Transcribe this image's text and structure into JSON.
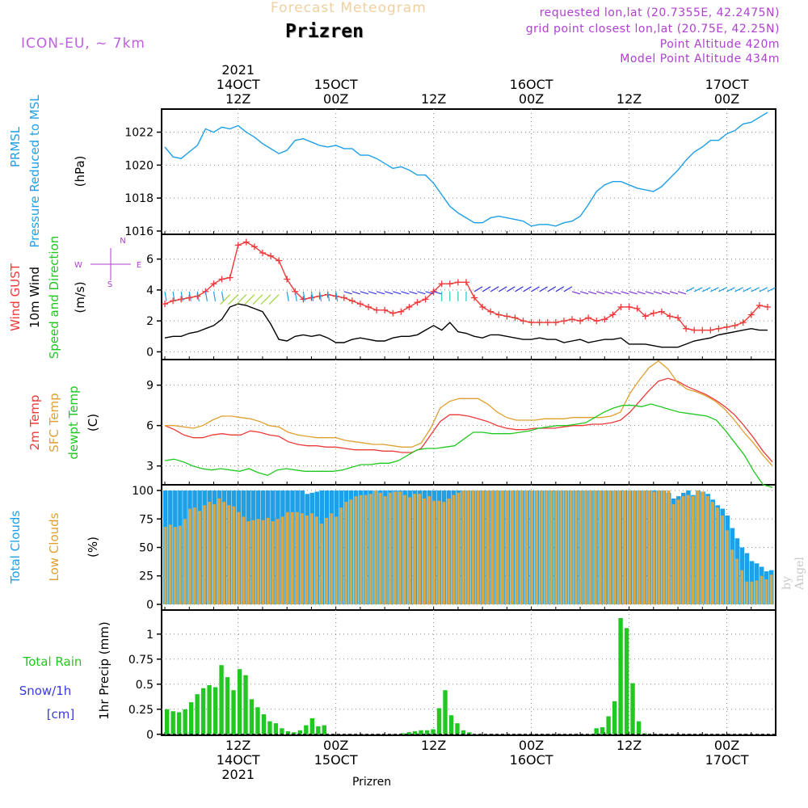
{
  "header": {
    "title": "Forecast Meteogram",
    "location": "Prizren",
    "model": "ICON-EU, ~ 7km",
    "requested": "requested lon,lat (20.7355E, 42.2475N)",
    "gridpoint": "grid point closest lon,lat (20.75E, 42.25N)",
    "point_alt": "Point Altitude 420m",
    "model_alt": "Model Point Altitude 434m",
    "footer_location": "Prizren",
    "watermark": "by Angel"
  },
  "top_axis": [
    {
      "lines": [
        "2021",
        "14OCT",
        "12Z"
      ]
    },
    {
      "lines": [
        "15OCT",
        "00Z"
      ]
    },
    {
      "lines": [
        "12Z"
      ]
    },
    {
      "lines": [
        "16OCT",
        "00Z"
      ]
    },
    {
      "lines": [
        "12Z"
      ]
    },
    {
      "lines": [
        "17OCT",
        "00Z"
      ]
    }
  ],
  "bottom_axis": [
    {
      "lines": [
        "12Z",
        "14OCT",
        "2021"
      ]
    },
    {
      "lines": [
        "00Z",
        "15OCT"
      ]
    },
    {
      "lines": [
        "12Z"
      ]
    },
    {
      "lines": [
        "00Z",
        "16OCT"
      ]
    },
    {
      "lines": [
        "12Z"
      ]
    },
    {
      "lines": [
        "00Z",
        "17OCT"
      ]
    }
  ],
  "colors": {
    "pressure": "#1ea0e6",
    "gust": "#ee3a3a",
    "wind": "#000000",
    "t2m": "#ee3a3a",
    "sfc": "#e0a030",
    "dewpt": "#22c822",
    "total_clouds": "#1ea0e6",
    "low_clouds": "#d8a848",
    "rain": "#22c822",
    "snow": "#3a3ae0"
  },
  "chart_data": [
    {
      "type": "line",
      "panel": "pressure",
      "ylabels": [
        "PRMSL",
        "Pressure Reduced to MSL",
        "(hPa)"
      ],
      "yticks": [
        1016,
        1018,
        1020,
        1022
      ],
      "ylim": [
        1015.8,
        1023.4
      ],
      "x_start_hours": 0,
      "x_step_hours": 1,
      "series": [
        {
          "values": [
            1021.1,
            1020.5,
            1020.4,
            1020.8,
            1021.2,
            1022.2,
            1022.0,
            1022.3,
            1022.2,
            1022.4,
            1022.0,
            1021.7,
            1021.3,
            1021.0,
            1020.7,
            1020.9,
            1021.5,
            1021.6,
            1021.4,
            1021.2,
            1021.1,
            1021.2,
            1021.0,
            1021.0,
            1020.6,
            1020.6,
            1020.4,
            1020.1,
            1019.8,
            1019.9,
            1019.7,
            1019.4,
            1019.4,
            1018.9,
            1018.2,
            1017.5,
            1017.1,
            1016.8,
            1016.5,
            1016.5,
            1016.8,
            1016.9,
            1016.8,
            1016.7,
            1016.6,
            1016.3,
            1016.4,
            1016.4,
            1016.3,
            1016.5,
            1016.6,
            1016.9,
            1017.6,
            1018.4,
            1018.8,
            1019.0,
            1019.0,
            1018.8,
            1018.6,
            1018.5,
            1018.4,
            1018.7,
            1019.2,
            1019.7,
            1020.3,
            1020.8,
            1021.1,
            1021.5,
            1021.5,
            1021.9,
            1022.1,
            1022.5,
            1022.6,
            1022.9,
            1023.2
          ]
        }
      ]
    },
    {
      "type": "line",
      "panel": "wind",
      "ylabels": [
        "Wind GUST",
        "10m Wind",
        "Speed and Direction",
        "(m/s)"
      ],
      "compass": [
        "N",
        "W",
        "E",
        "S"
      ],
      "yticks": [
        0,
        2,
        4,
        6
      ],
      "ylim": [
        -0.5,
        7.6
      ],
      "x_start_hours": 0,
      "x_step_hours": 1,
      "series": [
        {
          "name": "Wind GUST",
          "values": [
            3.1,
            3.3,
            3.4,
            3.5,
            3.6,
            3.9,
            4.4,
            4.7,
            4.8,
            6.9,
            7.1,
            6.8,
            6.4,
            6.2,
            5.9,
            4.7,
            3.9,
            3.4,
            3.5,
            3.6,
            3.7,
            3.6,
            3.5,
            3.3,
            3.1,
            2.9,
            2.7,
            2.7,
            2.5,
            2.6,
            2.9,
            3.2,
            3.4,
            3.9,
            4.4,
            4.4,
            4.5,
            4.5,
            3.5,
            2.9,
            2.6,
            2.4,
            2.3,
            2.2,
            2.0,
            1.9,
            1.9,
            1.9,
            1.9,
            2.0,
            2.1,
            2.0,
            2.2,
            2.0,
            2.1,
            2.4,
            2.9,
            2.9,
            2.8,
            2.3,
            2.5,
            2.6,
            2.3,
            2.2,
            1.5,
            1.4,
            1.4,
            1.4,
            1.5,
            1.6,
            1.7,
            1.9,
            2.4,
            3.0,
            2.9
          ]
        },
        {
          "name": "10m Wind",
          "values": [
            0.9,
            1.0,
            1.0,
            1.2,
            1.3,
            1.5,
            1.7,
            2.1,
            2.9,
            3.1,
            3.0,
            2.8,
            2.6,
            1.8,
            0.8,
            0.7,
            1.0,
            1.1,
            1.0,
            1.1,
            0.9,
            0.6,
            0.6,
            0.8,
            0.9,
            0.8,
            0.7,
            0.7,
            0.9,
            1.0,
            1.0,
            1.1,
            1.4,
            1.7,
            1.4,
            1.9,
            1.3,
            1.2,
            1.0,
            0.9,
            1.1,
            1.1,
            1.0,
            0.9,
            0.8,
            0.8,
            0.9,
            0.8,
            0.8,
            0.6,
            0.7,
            0.8,
            0.6,
            0.7,
            0.8,
            0.8,
            0.9,
            0.5,
            0.5,
            0.5,
            0.4,
            0.3,
            0.3,
            0.3,
            0.5,
            0.7,
            0.8,
            0.9,
            1.1,
            1.2,
            1.3,
            1.4,
            1.5,
            1.4,
            1.4
          ]
        }
      ]
    },
    {
      "type": "line",
      "panel": "temperature",
      "ylabels": [
        "2m Temp",
        "SFC Temp",
        "dewpt Temp",
        "(C)"
      ],
      "yticks": [
        3,
        6,
        9
      ],
      "ylim": [
        1.6,
        10.9
      ],
      "x_start_hours": 0,
      "x_step_hours": 1,
      "series": [
        {
          "name": "2m Temp",
          "values": [
            6.0,
            5.7,
            5.3,
            5.1,
            5.1,
            5.3,
            5.4,
            5.3,
            5.3,
            5.6,
            5.5,
            5.3,
            5.2,
            4.8,
            4.6,
            4.5,
            4.5,
            4.4,
            4.4,
            4.3,
            4.2,
            4.2,
            4.2,
            4.1,
            4.1,
            4.0,
            4.0,
            4.3,
            5.3,
            6.3,
            6.8,
            6.8,
            6.7,
            6.5,
            6.3,
            6.0,
            5.8,
            5.7,
            5.7,
            5.8,
            5.8,
            5.8,
            5.9,
            6.0,
            6.0,
            6.1,
            6.1,
            6.2,
            6.4,
            7.0,
            7.8,
            8.6,
            9.3,
            9.5,
            9.3,
            8.9,
            8.6,
            8.3,
            7.9,
            7.4,
            6.8,
            6.0,
            5.1,
            4.1,
            3.3
          ]
        },
        {
          "name": "SFC Temp",
          "values": [
            6.0,
            6.0,
            5.9,
            5.8,
            6.0,
            6.4,
            6.7,
            6.7,
            6.6,
            6.5,
            6.3,
            6.0,
            5.9,
            5.5,
            5.3,
            5.2,
            5.1,
            5.1,
            5.1,
            4.9,
            4.8,
            4.7,
            4.6,
            4.6,
            4.5,
            4.4,
            4.4,
            4.7,
            5.8,
            7.3,
            7.8,
            8.0,
            8.0,
            8.0,
            7.6,
            7.0,
            6.6,
            6.4,
            6.4,
            6.4,
            6.5,
            6.5,
            6.5,
            6.6,
            6.6,
            6.6,
            6.6,
            6.7,
            7.0,
            8.4,
            9.4,
            10.3,
            10.8,
            10.2,
            9.2,
            8.7,
            8.5,
            8.2,
            7.8,
            7.2,
            6.4,
            5.5,
            4.7,
            3.8,
            3.0
          ]
        },
        {
          "name": "dewpt Temp",
          "values": [
            3.4,
            3.5,
            3.3,
            3.0,
            2.8,
            2.7,
            2.8,
            2.7,
            2.6,
            2.8,
            2.5,
            2.3,
            2.7,
            2.8,
            2.7,
            2.6,
            2.6,
            2.6,
            2.6,
            2.7,
            2.9,
            3.1,
            3.1,
            3.2,
            3.2,
            3.4,
            3.8,
            4.2,
            4.3,
            4.3,
            4.4,
            4.5,
            5.0,
            5.5,
            5.5,
            5.4,
            5.4,
            5.4,
            5.5,
            5.6,
            5.8,
            5.9,
            6.0,
            6.0,
            6.1,
            6.2,
            6.6,
            7.0,
            7.3,
            7.5,
            7.5,
            7.4,
            7.6,
            7.4,
            7.2,
            7.0,
            6.9,
            6.8,
            6.7,
            6.4,
            5.6,
            4.7,
            3.8,
            2.6,
            1.6,
            1.4
          ]
        }
      ]
    },
    {
      "type": "bar",
      "panel": "clouds",
      "ylabels": [
        "Total Clouds",
        "Low Clouds",
        "(%)"
      ],
      "yticks": [
        0,
        25,
        50,
        75,
        100
      ],
      "ylim": [
        -5,
        105
      ],
      "x_start_hours": 0,
      "x_step_hours": 1,
      "series": [
        {
          "name": "Total Clouds",
          "values": [
            100,
            100,
            100,
            100,
            100,
            100,
            100,
            100,
            100,
            100,
            100,
            100,
            100,
            100,
            100,
            100,
            100,
            100,
            100,
            100,
            100,
            100,
            100,
            100,
            100,
            100,
            100,
            100,
            100,
            97,
            98,
            99,
            100,
            100,
            100,
            100,
            100,
            100,
            100,
            100,
            100,
            100,
            100,
            100,
            100,
            100,
            100,
            100,
            100,
            100,
            100,
            100,
            100,
            100,
            100,
            100,
            100,
            100,
            100,
            100,
            100,
            100,
            100,
            100,
            100,
            100,
            100,
            100,
            100,
            100,
            100,
            100,
            100,
            100,
            100,
            100,
            100,
            100,
            100,
            100,
            100,
            100,
            100,
            100,
            100,
            100,
            100,
            100,
            100,
            100,
            100,
            100,
            100,
            100,
            100,
            100,
            100,
            100,
            100,
            100,
            100,
            100,
            100,
            98,
            93,
            95,
            98,
            100,
            96,
            100,
            99,
            97,
            92,
            87,
            84,
            78,
            67,
            58,
            50,
            45,
            38,
            36,
            33,
            29,
            30
          ]
        },
        {
          "name": "Low Clouds",
          "values": [
            68,
            70,
            68,
            69,
            75,
            84,
            85,
            82,
            87,
            90,
            88,
            93,
            90,
            87,
            86,
            81,
            77,
            73,
            74,
            75,
            74,
            76,
            73,
            75,
            77,
            81,
            81,
            81,
            80,
            78,
            80,
            77,
            71,
            76,
            80,
            77,
            85,
            90,
            92,
            95,
            96,
            96,
            97,
            100,
            98,
            95,
            98,
            99,
            99,
            96,
            94,
            97,
            97,
            93,
            95,
            91,
            91,
            90,
            93,
            96,
            98,
            100,
            100,
            100,
            100,
            100,
            100,
            100,
            100,
            100,
            100,
            100,
            100,
            100,
            100,
            100,
            100,
            100,
            100,
            100,
            100,
            100,
            100,
            100,
            100,
            100,
            100,
            100,
            100,
            100,
            100,
            100,
            100,
            100,
            100,
            100,
            100,
            100,
            100,
            100,
            99,
            100,
            100,
            100,
            88,
            92,
            95,
            96,
            95,
            100,
            99,
            95,
            90,
            85,
            78,
            65,
            48,
            40,
            30,
            20,
            20,
            21,
            25,
            22,
            26
          ]
        }
      ]
    },
    {
      "type": "bar",
      "panel": "precip",
      "ylabels": [
        "Total  Rain",
        "Snow/1h",
        "[cm]",
        "1hr Precip (mm)"
      ],
      "yticks": [
        0,
        0.25,
        0.5,
        0.75,
        1
      ],
      "ylim": [
        -0.01,
        1.24
      ],
      "x_start_hours": 0,
      "x_step_hours": 1,
      "series": [
        {
          "name": "Total Rain",
          "values": [
            0.25,
            0.23,
            0.22,
            0.25,
            0.32,
            0.4,
            0.46,
            0.49,
            0.47,
            0.69,
            0.57,
            0.44,
            0.65,
            0.59,
            0.35,
            0.27,
            0.2,
            0.13,
            0.11,
            0.06,
            0.03,
            0.02,
            0.04,
            0.09,
            0.16,
            0.08,
            0.09,
            0,
            0,
            0,
            0,
            0,
            0,
            0,
            0,
            0,
            0,
            0,
            0,
            0.01,
            0.02,
            0.03,
            0.04,
            0.04,
            0.05,
            0.26,
            0.44,
            0.19,
            0.11,
            0.04,
            0.02,
            0,
            0,
            0,
            0,
            0,
            0,
            0,
            0,
            0,
            0,
            0,
            0,
            0,
            0,
            0,
            0,
            0,
            0,
            0,
            0,
            0.06,
            0.07,
            0.18,
            0.33,
            1.16,
            1.06,
            0.51,
            0.13,
            0.01,
            0,
            0,
            0,
            0,
            0,
            0,
            0,
            0,
            0,
            0,
            0,
            0,
            0,
            0,
            0,
            0,
            0,
            0,
            0,
            0,
            0
          ]
        }
      ]
    }
  ]
}
